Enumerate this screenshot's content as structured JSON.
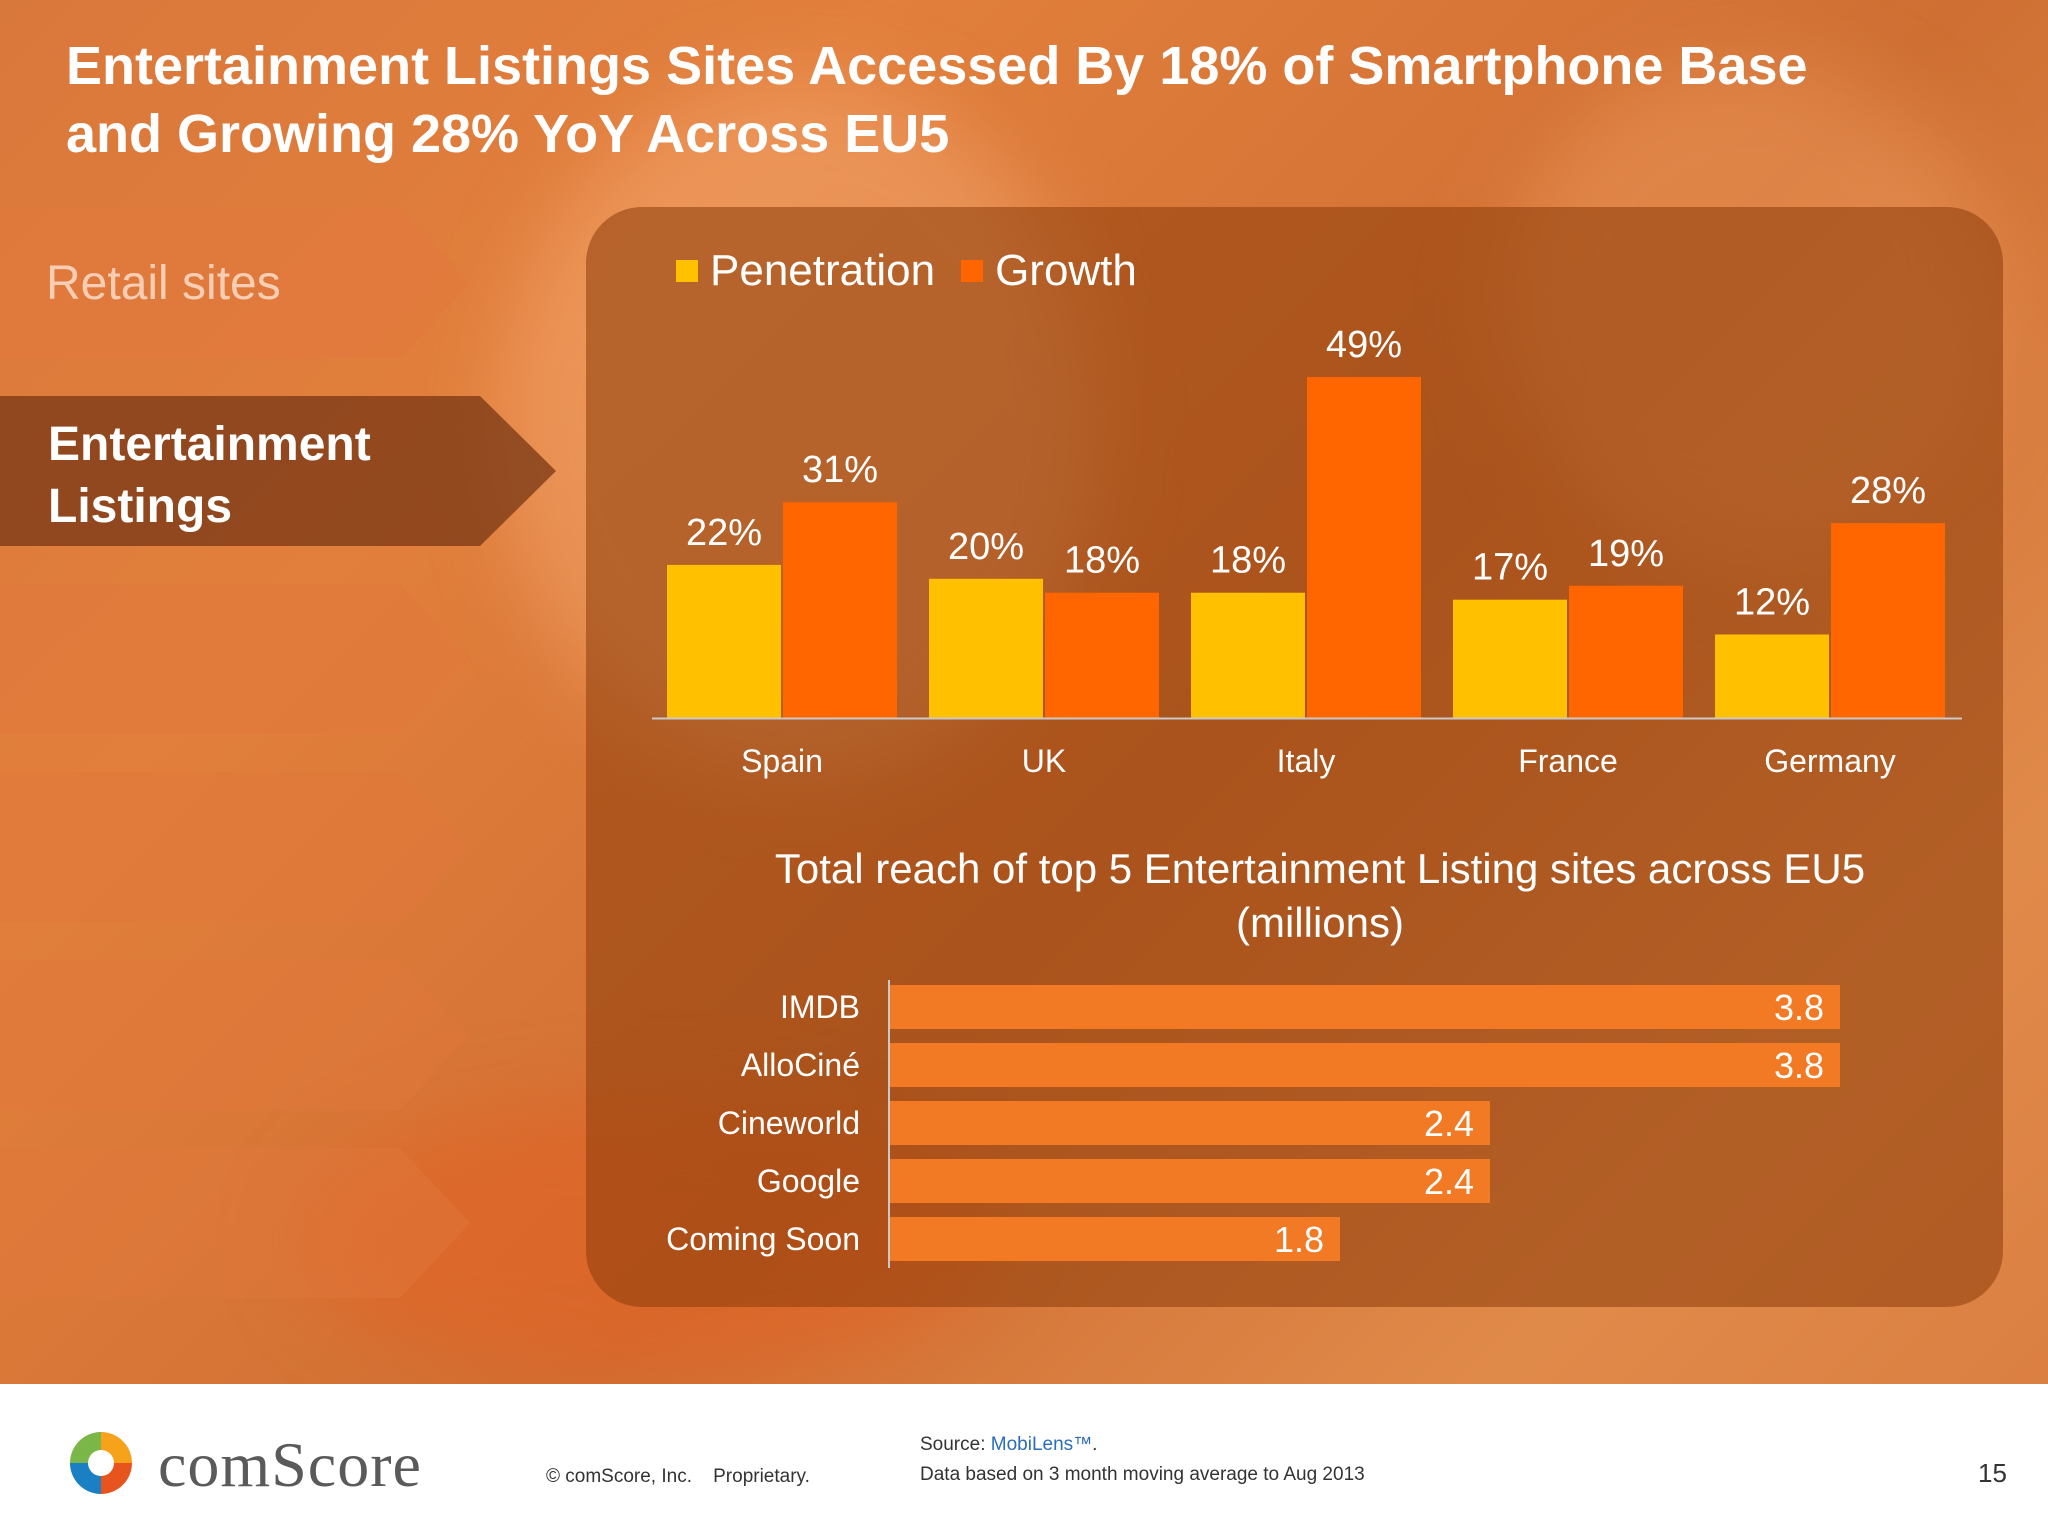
{
  "slide": {
    "title_line1": "Entertainment Listings Sites Accessed By 18% of Smartphone Base",
    "title_line2": "and Growing  28% YoY Across EU5",
    "page_number": "15"
  },
  "nav": {
    "items": [
      {
        "label": "Retail sites"
      },
      {
        "label_line1": "Entertainment",
        "label_line2": "Listings"
      }
    ]
  },
  "colors": {
    "penetration": "#ffc000",
    "growth": "#ff6600",
    "reach_bar": "#f27a24"
  },
  "chart_data": [
    {
      "type": "bar",
      "title": "",
      "categories": [
        "Spain",
        "UK",
        "Italy",
        "France",
        "Germany"
      ],
      "series": [
        {
          "name": "Penetration",
          "values": [
            22,
            20,
            18,
            17,
            12
          ],
          "labels": [
            "22%",
            "20%",
            "18%",
            "17%",
            "12%"
          ]
        },
        {
          "name": "Growth",
          "values": [
            31,
            18,
            49,
            19,
            28
          ],
          "labels": [
            "31%",
            "18%",
            "49%",
            "19%",
            "28%"
          ]
        }
      ],
      "legend": "top-left",
      "grid": false
    },
    {
      "type": "bar",
      "orientation": "horizontal",
      "title_line1": "Total reach of top 5 Entertainment Listing sites across EU5",
      "title_line2": "(millions)",
      "categories": [
        "IMDB",
        "AlloCiné",
        "Cineworld",
        "Google",
        "Coming Soon"
      ],
      "values": [
        3.8,
        3.8,
        2.4,
        2.4,
        1.8
      ],
      "labels": [
        "3.8",
        "3.8",
        "2.4",
        "2.4",
        "1.8"
      ],
      "grid": false
    }
  ],
  "footer": {
    "brand": "comScore",
    "copyright": "© comScore, Inc.",
    "proprietary": "Proprietary.",
    "source_prefix": "Source: ",
    "source_name": "MobiLens™",
    "source_suffix": ".",
    "note": "Data based on 3 month moving average to Aug 2013"
  }
}
